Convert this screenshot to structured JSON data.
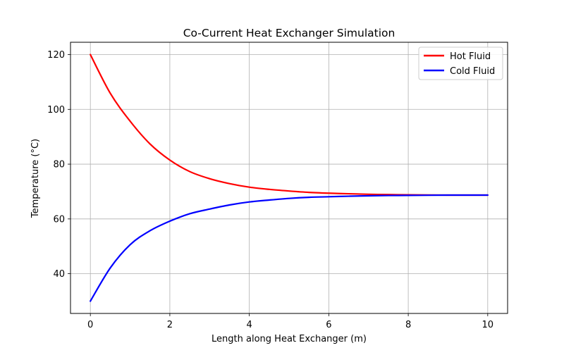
{
  "chart_data": {
    "type": "line",
    "title": "Co-Current Heat Exchanger Simulation",
    "xlabel": "Length along Heat Exchanger (m)",
    "ylabel": "Temperature (°C)",
    "xlim": [
      -0.5,
      10.5
    ],
    "ylim": [
      25.5,
      124.5
    ],
    "xticks": [
      0,
      2,
      4,
      6,
      8,
      10
    ],
    "yticks": [
      40,
      60,
      80,
      100,
      120
    ],
    "xtick_labels": [
      "0",
      "2",
      "4",
      "6",
      "8",
      "10"
    ],
    "ytick_labels": [
      "40",
      "60",
      "80",
      "100",
      "120"
    ],
    "grid": true,
    "legend_position": "upper-right",
    "x": [
      0,
      0.5,
      1,
      1.5,
      2,
      2.5,
      3,
      3.5,
      4,
      4.5,
      5,
      5.5,
      6,
      6.5,
      7,
      7.5,
      8,
      8.5,
      9,
      9.5,
      10
    ],
    "series": [
      {
        "name": "Hot Fluid",
        "color": "#ff0000",
        "values": [
          120.0,
          105.9,
          95.7,
          87.4,
          81.5,
          77.3,
          74.7,
          72.9,
          71.6,
          70.8,
          70.2,
          69.7,
          69.4,
          69.2,
          69.0,
          68.9,
          68.8,
          68.75,
          68.7,
          68.7,
          68.7
        ]
      },
      {
        "name": "Cold Fluid",
        "color": "#0000ff",
        "values": [
          30.0,
          42.1,
          50.6,
          55.7,
          59.2,
          61.9,
          63.6,
          65.1,
          66.2,
          66.9,
          67.5,
          67.9,
          68.1,
          68.3,
          68.45,
          68.55,
          68.6,
          68.65,
          68.7,
          68.7,
          68.7
        ]
      }
    ]
  }
}
